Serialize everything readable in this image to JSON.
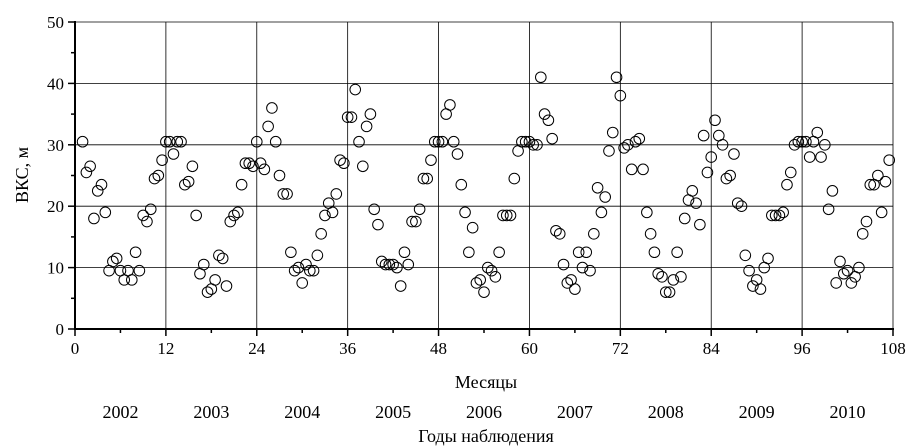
{
  "chart_data": {
    "type": "scatter",
    "ylabel": "ВКС, м",
    "xlabel": "Месяцы",
    "secondary_xlabel": "Годы наблюдения",
    "xlim": [
      0,
      108
    ],
    "ylim": [
      0,
      50
    ],
    "x_ticks": [
      0,
      12,
      24,
      36,
      48,
      60,
      72,
      84,
      96,
      108
    ],
    "y_ticks": [
      0,
      10,
      20,
      30,
      40,
      50
    ],
    "grid": true,
    "marker": "open-circle",
    "years": [
      "2002",
      "2003",
      "2004",
      "2005",
      "2006",
      "2007",
      "2008",
      "2009",
      "2010"
    ],
    "series": [
      {
        "points": [
          [
            1,
            30.5
          ],
          [
            1.5,
            25.5
          ],
          [
            2,
            26.5
          ],
          [
            2.5,
            18
          ],
          [
            3,
            22.5
          ],
          [
            3.5,
            23.5
          ],
          [
            4,
            19
          ],
          [
            4.5,
            9.5
          ],
          [
            5,
            11
          ],
          [
            5.5,
            11.5
          ],
          [
            6,
            9.5
          ],
          [
            6.5,
            8
          ],
          [
            7,
            9.5
          ],
          [
            7.5,
            8
          ],
          [
            8,
            12.5
          ],
          [
            8.5,
            9.5
          ],
          [
            9,
            18.5
          ],
          [
            9.5,
            17.5
          ],
          [
            10,
            19.5
          ],
          [
            10.5,
            24.5
          ],
          [
            11,
            25
          ],
          [
            11.5,
            27.5
          ],
          [
            12,
            30.5
          ],
          [
            12.5,
            30.5
          ],
          [
            13,
            28.5
          ],
          [
            13.5,
            30.5
          ],
          [
            14,
            30.5
          ],
          [
            14.5,
            23.5
          ],
          [
            15,
            24
          ],
          [
            15.5,
            26.5
          ],
          [
            16,
            18.5
          ],
          [
            16.5,
            9
          ],
          [
            17,
            10.5
          ],
          [
            17.5,
            6
          ],
          [
            18,
            6.5
          ],
          [
            18.5,
            8
          ],
          [
            19,
            12
          ],
          [
            19.5,
            11.5
          ],
          [
            20,
            7
          ],
          [
            20.5,
            17.5
          ],
          [
            21,
            18.5
          ],
          [
            21.5,
            19
          ],
          [
            22,
            23.5
          ],
          [
            22.5,
            27
          ],
          [
            23,
            27
          ],
          [
            23.5,
            26.5
          ],
          [
            24,
            30.5
          ],
          [
            24.5,
            27
          ],
          [
            25,
            26
          ],
          [
            25.5,
            33
          ],
          [
            26,
            36
          ],
          [
            26.5,
            30.5
          ],
          [
            27,
            25
          ],
          [
            27.5,
            22
          ],
          [
            28,
            22
          ],
          [
            28.5,
            12.5
          ],
          [
            29,
            9.5
          ],
          [
            29.5,
            10
          ],
          [
            30,
            7.5
          ],
          [
            30.5,
            10.5
          ],
          [
            31,
            9.5
          ],
          [
            31.5,
            9.5
          ],
          [
            32,
            12
          ],
          [
            32.5,
            15.5
          ],
          [
            33,
            18.5
          ],
          [
            33.5,
            20.5
          ],
          [
            34,
            19
          ],
          [
            34.5,
            22
          ],
          [
            35,
            27.5
          ],
          [
            35.5,
            27
          ],
          [
            36,
            34.5
          ],
          [
            36.5,
            34.5
          ],
          [
            37,
            39
          ],
          [
            37.5,
            30.5
          ],
          [
            38,
            26.5
          ],
          [
            38.5,
            33
          ],
          [
            39,
            35
          ],
          [
            39.5,
            19.5
          ],
          [
            40,
            17
          ],
          [
            40.5,
            11
          ],
          [
            41,
            10.5
          ],
          [
            41.5,
            10.5
          ],
          [
            42,
            10.5
          ],
          [
            42.5,
            10
          ],
          [
            43,
            7
          ],
          [
            43.5,
            12.5
          ],
          [
            44,
            10.5
          ],
          [
            44.5,
            17.5
          ],
          [
            45,
            17.5
          ],
          [
            45.5,
            19.5
          ],
          [
            46,
            24.5
          ],
          [
            46.5,
            24.5
          ],
          [
            47,
            27.5
          ],
          [
            47.5,
            30.5
          ],
          [
            48,
            30.5
          ],
          [
            48.5,
            30.5
          ],
          [
            49,
            35
          ],
          [
            49.5,
            36.5
          ],
          [
            50,
            30.5
          ],
          [
            50.5,
            28.5
          ],
          [
            51,
            23.5
          ],
          [
            51.5,
            19
          ],
          [
            52,
            12.5
          ],
          [
            52.5,
            16.5
          ],
          [
            53,
            7.5
          ],
          [
            53.5,
            8
          ],
          [
            54,
            6
          ],
          [
            54.5,
            10
          ],
          [
            55,
            9.5
          ],
          [
            55.5,
            8.5
          ],
          [
            56,
            12.5
          ],
          [
            56.5,
            18.5
          ],
          [
            57,
            18.5
          ],
          [
            57.5,
            18.5
          ],
          [
            58,
            24.5
          ],
          [
            58.5,
            29
          ],
          [
            59,
            30.5
          ],
          [
            59.5,
            30.5
          ],
          [
            60,
            30.5
          ],
          [
            60.5,
            30
          ],
          [
            61,
            30
          ],
          [
            61.5,
            41
          ],
          [
            62,
            35
          ],
          [
            62.5,
            34
          ],
          [
            63,
            31
          ],
          [
            63.5,
            16
          ],
          [
            64,
            15.5
          ],
          [
            64.5,
            10.5
          ],
          [
            65,
            7.5
          ],
          [
            65.5,
            8
          ],
          [
            66,
            6.5
          ],
          [
            66.5,
            12.5
          ],
          [
            67,
            10
          ],
          [
            67.5,
            12.5
          ],
          [
            68,
            9.5
          ],
          [
            68.5,
            15.5
          ],
          [
            69,
            23
          ],
          [
            69.5,
            19
          ],
          [
            70,
            21.5
          ],
          [
            70.5,
            29
          ],
          [
            71,
            32
          ],
          [
            71.5,
            41
          ],
          [
            72,
            38
          ],
          [
            72.5,
            29.5
          ],
          [
            73,
            30
          ],
          [
            73.5,
            26
          ],
          [
            74,
            30.5
          ],
          [
            74.5,
            31
          ],
          [
            75,
            26
          ],
          [
            75.5,
            19
          ],
          [
            76,
            15.5
          ],
          [
            76.5,
            12.5
          ],
          [
            77,
            9
          ],
          [
            77.5,
            8.5
          ],
          [
            78,
            6
          ],
          [
            78.5,
            6
          ],
          [
            79,
            8
          ],
          [
            79.5,
            12.5
          ],
          [
            80,
            8.5
          ],
          [
            80.5,
            18
          ],
          [
            81,
            21
          ],
          [
            81.5,
            22.5
          ],
          [
            82,
            20.5
          ],
          [
            82.5,
            17
          ],
          [
            83,
            31.5
          ],
          [
            83.5,
            25.5
          ],
          [
            84,
            28
          ],
          [
            84.5,
            34
          ],
          [
            85,
            31.5
          ],
          [
            85.5,
            30
          ],
          [
            86,
            24.5
          ],
          [
            86.5,
            25
          ],
          [
            87,
            28.5
          ],
          [
            87.5,
            20.5
          ],
          [
            88,
            20
          ],
          [
            88.5,
            12
          ],
          [
            89,
            9.5
          ],
          [
            89.5,
            7
          ],
          [
            90,
            8
          ],
          [
            90.5,
            6.5
          ],
          [
            91,
            10
          ],
          [
            91.5,
            11.5
          ],
          [
            92,
            18.5
          ],
          [
            92.5,
            18.5
          ],
          [
            93,
            18.5
          ],
          [
            93.5,
            19
          ],
          [
            94,
            23.5
          ],
          [
            94.5,
            25.5
          ],
          [
            95,
            30
          ],
          [
            95.5,
            30.5
          ],
          [
            96,
            30.5
          ],
          [
            96.5,
            30.5
          ],
          [
            97,
            28
          ],
          [
            97.5,
            30.5
          ],
          [
            98,
            32
          ],
          [
            98.5,
            28
          ],
          [
            99,
            30
          ],
          [
            99.5,
            19.5
          ],
          [
            100,
            22.5
          ],
          [
            100.5,
            7.5
          ],
          [
            101,
            11
          ],
          [
            101.5,
            9
          ],
          [
            102,
            9.5
          ],
          [
            102.5,
            7.5
          ],
          [
            103,
            8.5
          ],
          [
            103.5,
            10
          ],
          [
            104,
            15.5
          ],
          [
            104.5,
            17.5
          ],
          [
            105,
            23.5
          ],
          [
            105.5,
            23.5
          ],
          [
            106,
            25
          ],
          [
            106.5,
            19
          ],
          [
            107,
            24
          ],
          [
            107.5,
            27.5
          ]
        ]
      }
    ]
  }
}
